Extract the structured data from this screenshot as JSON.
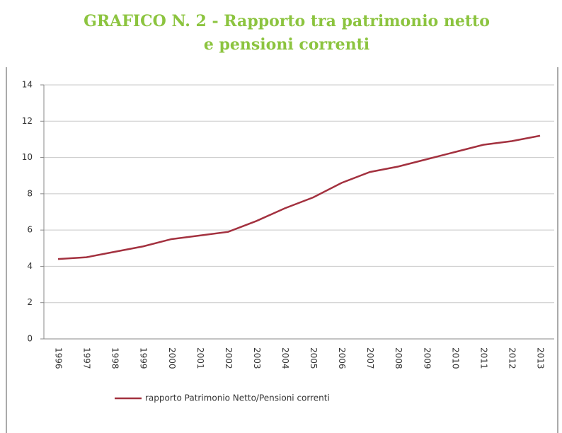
{
  "chart_data": {
    "type": "line",
    "title": [
      "GRAFICO N. 2 - Rapporto tra patrimonio netto",
      "e pensioni correnti"
    ],
    "categories": [
      "1996",
      "1997",
      "1998",
      "1999",
      "2000",
      "2001",
      "2002",
      "2003",
      "2004",
      "2005",
      "2006",
      "2007",
      "2008",
      "2009",
      "2010",
      "2011",
      "2012",
      "2013"
    ],
    "series": [
      {
        "name": "rapporto Patrimonio Netto/Pensioni correnti",
        "color": "#a3313f",
        "values": [
          4.4,
          4.5,
          4.8,
          5.1,
          5.5,
          5.7,
          5.9,
          6.5,
          7.2,
          7.8,
          8.6,
          9.2,
          9.5,
          9.9,
          10.3,
          10.7,
          10.9,
          11.2
        ]
      }
    ],
    "ylim": [
      0,
      14
    ],
    "yticks": [
      0,
      2,
      4,
      6,
      8,
      10,
      12,
      14
    ],
    "grid": true,
    "legend": "bottom"
  }
}
